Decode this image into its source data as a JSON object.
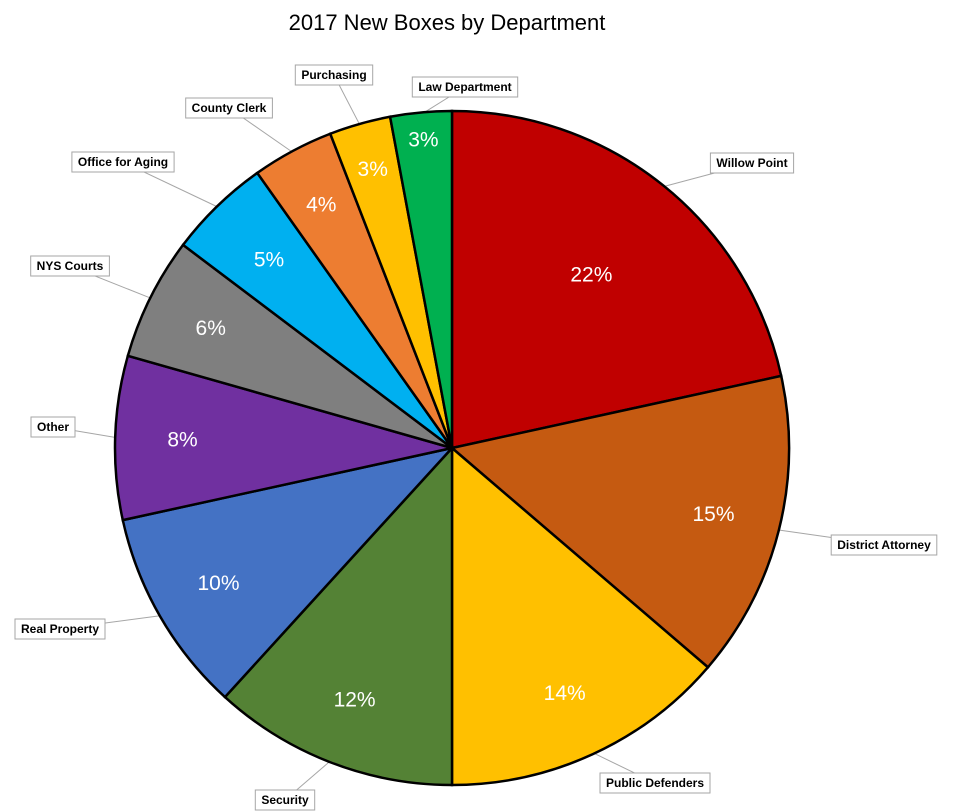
{
  "chart_data": {
    "type": "pie",
    "title": "2017 New Boxes by Department",
    "start_angle_deg": 0,
    "direction": "clockwise",
    "slices": [
      {
        "label": "Willow Point",
        "value": 22,
        "display": "22%",
        "color": "#C00000"
      },
      {
        "label": "District Attorney",
        "value": 15,
        "display": "15%",
        "color": "#C55A11"
      },
      {
        "label": "Public Defenders",
        "value": 14,
        "display": "14%",
        "color": "#FFC000"
      },
      {
        "label": "Security",
        "value": 12,
        "display": "12%",
        "color": "#548235"
      },
      {
        "label": "Real Property",
        "value": 10,
        "display": "10%",
        "color": "#4472C4"
      },
      {
        "label": "Other",
        "value": 8,
        "display": "8%",
        "color": "#7030A0"
      },
      {
        "label": "NYS Courts",
        "value": 6,
        "display": "6%",
        "color": "#7F7F7F"
      },
      {
        "label": "Office for Aging",
        "value": 5,
        "display": "5%",
        "color": "#00B0F0"
      },
      {
        "label": "County Clerk",
        "value": 4,
        "display": "4%",
        "color": "#ED7D31"
      },
      {
        "label": "Purchasing",
        "value": 3,
        "display": "3%",
        "color": "#FFC000"
      },
      {
        "label": "Law Department",
        "value": 3,
        "display": "3%",
        "color": "#00B050"
      }
    ]
  }
}
